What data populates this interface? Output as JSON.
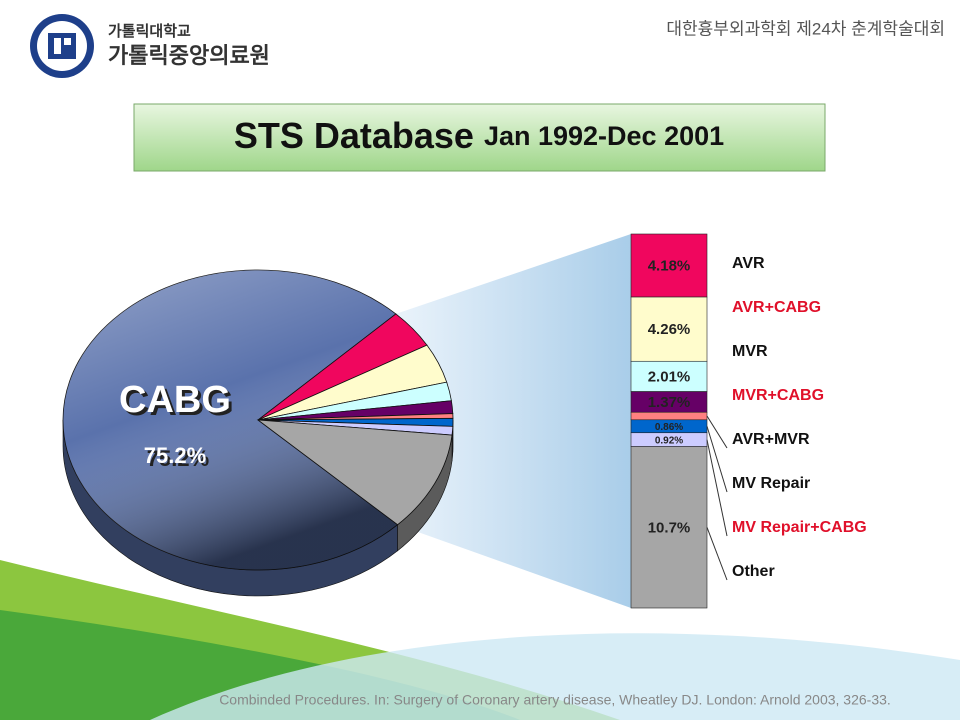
{
  "header": {
    "university": "가톨릭대학교",
    "center": "가톨릭중앙의료원",
    "conference": "대한흉부외과학회 제24차 춘계학술대회"
  },
  "chart_data": {
    "type": "pie-of-bar",
    "title": "STS Database",
    "subtitle": "Jan 1992-Dec 2001",
    "categories": [
      "CABG",
      "AVR",
      "AVR+CABG",
      "MVR",
      "MVR+CABG",
      "AVR+MVR",
      "MV Repair",
      "MV Repair+CABG",
      "Other"
    ],
    "values": [
      75.2,
      4.18,
      4.26,
      2.01,
      1.37,
      0.5,
      0.86,
      0.92,
      10.7
    ],
    "value_labels": [
      "75.2%",
      "4.18%",
      "4.26%",
      "2.01%",
      "1.37%",
      null,
      "0.86%",
      "0.92%",
      "10.7%"
    ],
    "colors": [
      "#5a72ac",
      "#f0065e",
      "#fffccc",
      "#ccffff",
      "#660066",
      "#ff8080",
      "#0066cc",
      "#ccccff",
      "#a6a6a6"
    ],
    "legend_colors": [
      null,
      "#111111",
      "#e0102a",
      "#111111",
      "#e0102a",
      "#111111",
      "#111111",
      "#e0102a",
      "#111111"
    ]
  },
  "footer": {
    "citation": "Combinded Procedures. In: Surgery of Coronary artery disease, Wheatley DJ. London: Arnold 2003, 326-33."
  }
}
